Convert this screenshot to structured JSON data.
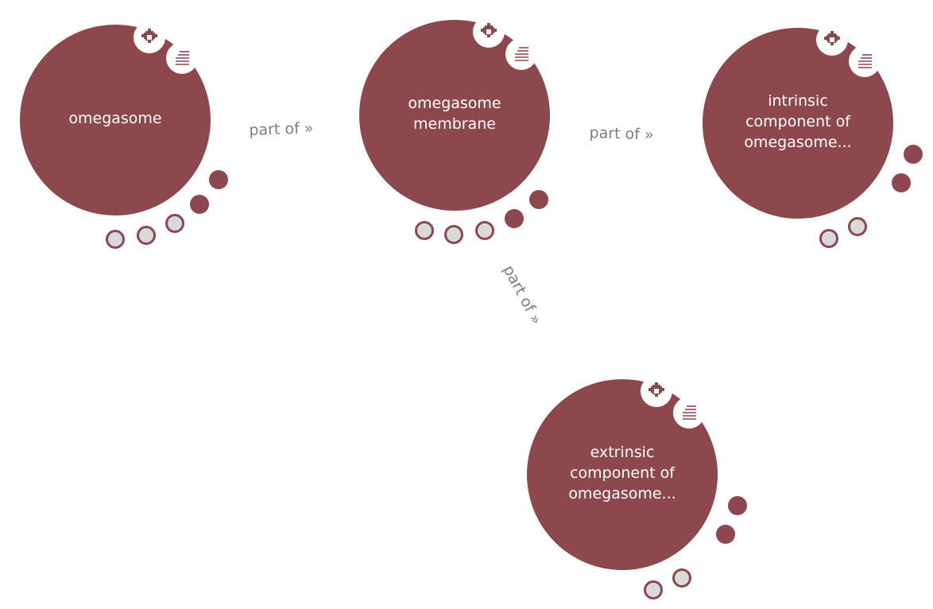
{
  "nodes": [
    {
      "label": "omegasome"
    },
    {
      "label": "omegasome\nmembrane"
    },
    {
      "label": "intrinsic\ncomponent of\nomegasome..."
    },
    {
      "label": "extrinsic\ncomponent of\nomegasome..."
    }
  ],
  "edges": [
    {
      "label": "part of »"
    },
    {
      "label": "part of »"
    },
    {
      "label": "part of »"
    }
  ],
  "icons": {
    "settings": "gear-icon",
    "menu": "list-icon"
  },
  "colors": {
    "node": "#8c484c",
    "hollow_dot_fill": "#d9d9d9",
    "edge_label": "#7d7d7d"
  }
}
